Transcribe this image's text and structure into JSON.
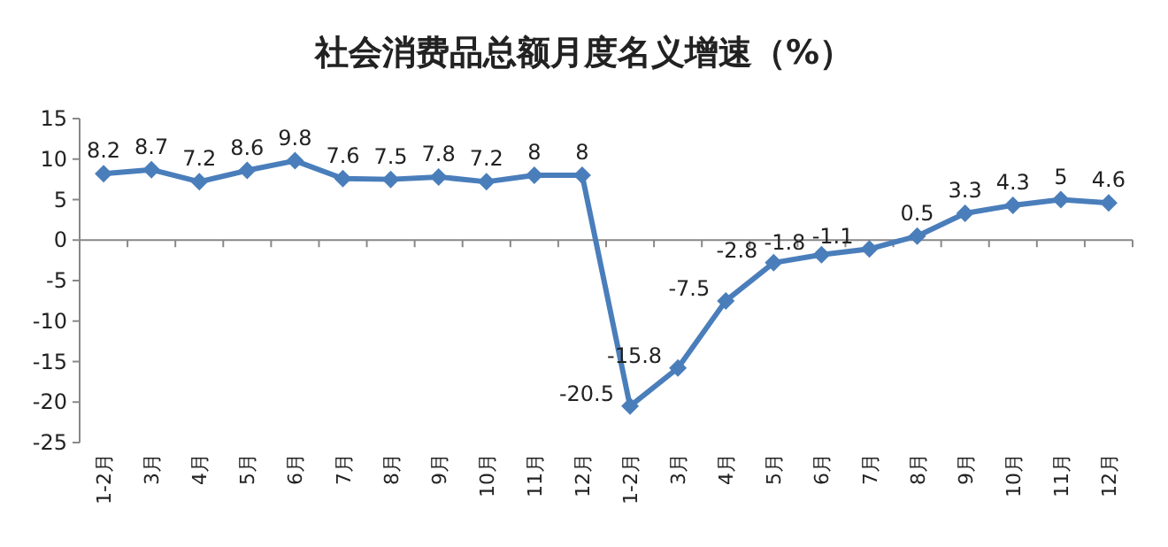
{
  "chart_data": {
    "type": "line",
    "title": "社会消费品总额月度名义增速（%）",
    "categories": [
      "1-2月",
      "3月",
      "4月",
      "5月",
      "6月",
      "7月",
      "8月",
      "9月",
      "10月",
      "11月",
      "12月",
      "1-2月",
      "3月",
      "4月",
      "5月",
      "6月",
      "7月",
      "8月",
      "9月",
      "10月",
      "11月",
      "12月"
    ],
    "series": [
      {
        "color": "#4a7ebb",
        "values": [
          8.2,
          8.7,
          7.2,
          8.6,
          9.8,
          7.6,
          7.5,
          7.8,
          7.2,
          8,
          8,
          -20.5,
          -15.8,
          -7.5,
          -2.8,
          -1.8,
          -1.1,
          0.5,
          3.3,
          4.3,
          5,
          4.6
        ]
      }
    ],
    "ylim": [
      -25,
      15
    ],
    "yticks": [
      -25,
      -20,
      -15,
      -10,
      -5,
      0,
      5,
      10,
      15
    ],
    "data_labels": true,
    "marker": "diamond"
  }
}
